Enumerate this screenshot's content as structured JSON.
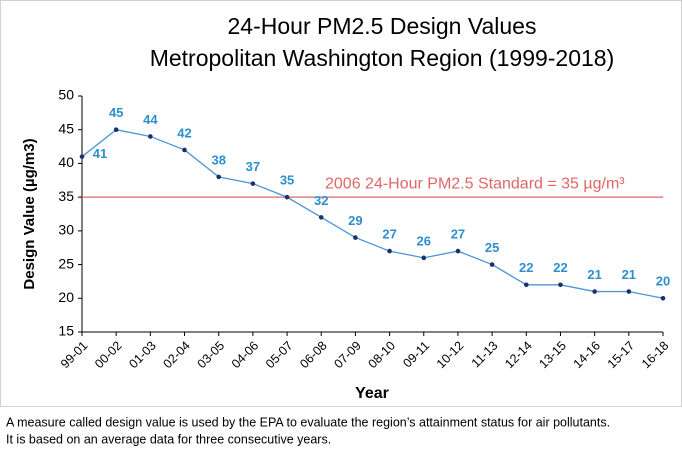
{
  "chart_data": {
    "type": "line",
    "title": [
      "24-Hour PM2.5 Design Values",
      "Metropolitan Washington Region (1999-2018)"
    ],
    "x_label": "Year",
    "y_label": "Design Value (µg/m3)",
    "categories": [
      "99-01",
      "00-02",
      "01-03",
      "02-04",
      "03-05",
      "04-06",
      "05-07",
      "06-08",
      "07-09",
      "08-10",
      "09-11",
      "10-12",
      "11-13",
      "12-14",
      "13-15",
      "14-16",
      "15-17",
      "16-18"
    ],
    "values": [
      41,
      45,
      44,
      42,
      38,
      37,
      35,
      32,
      29,
      27,
      26,
      27,
      25,
      22,
      22,
      21,
      21,
      20
    ],
    "color": "#4a97d6",
    "marker_color": "#1f2f6b",
    "label_color": "#2e8fcf",
    "ylim": [
      15,
      50
    ],
    "yticks": [
      15,
      20,
      25,
      30,
      35,
      40,
      45,
      50
    ],
    "reference_line": {
      "value": 35,
      "label": "2006 24-Hour PM2.5 Standard = 35 µg/m³",
      "color": "#e06666"
    },
    "note": [
      "A measure called design value is used by the EPA to evaluate the region’s attainment status for air pollutants.",
      "It is based on an average data for three consecutive years."
    ]
  }
}
